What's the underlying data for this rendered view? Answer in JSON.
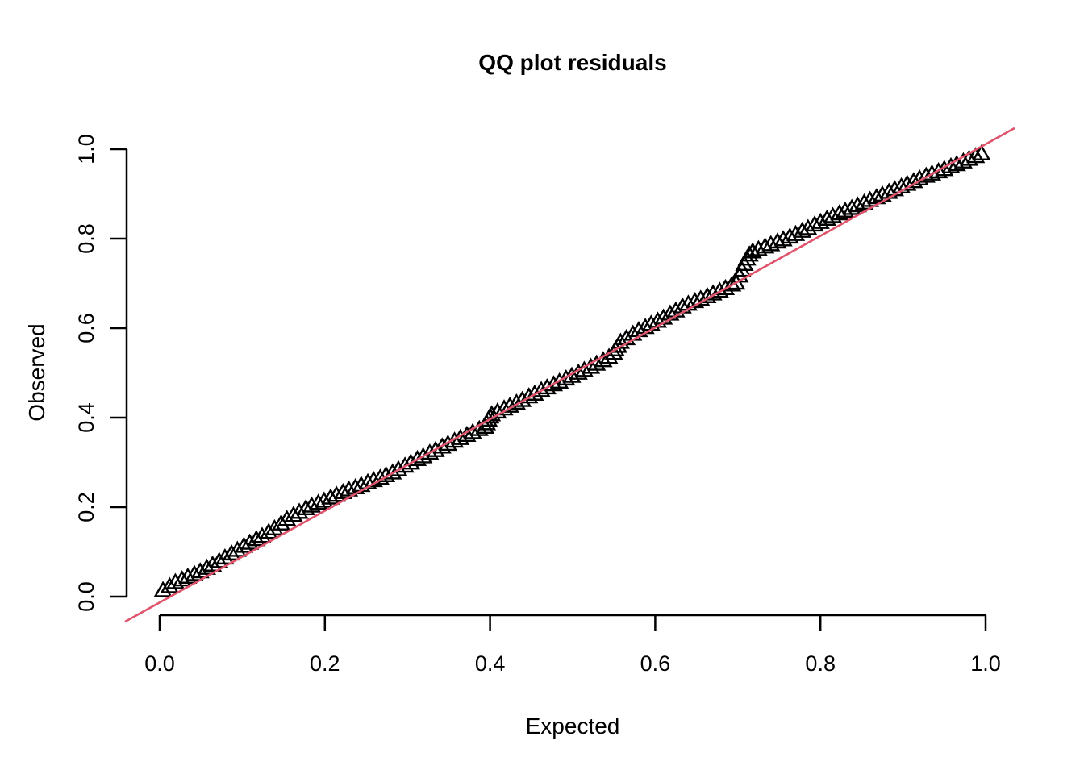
{
  "figure": {
    "background": "#ffffff",
    "foreground": "#000000"
  },
  "chart_data": {
    "type": "scatter",
    "title": "QQ plot residuals",
    "xlabel": "Expected",
    "ylabel": "Observed",
    "xlim": [
      0,
      1
    ],
    "ylim": [
      0,
      1
    ],
    "grid": false,
    "legend": "none",
    "x_ticks": [
      0.0,
      0.2,
      0.4,
      0.6,
      0.8,
      1.0
    ],
    "x_tick_labels": [
      "0.0",
      "0.2",
      "0.4",
      "0.6",
      "0.8",
      "1.0"
    ],
    "y_ticks": [
      0.0,
      0.2,
      0.4,
      0.6,
      0.8,
      1.0
    ],
    "y_tick_labels": [
      "0.0",
      "0.2",
      "0.4",
      "0.6",
      "0.8",
      "1.0"
    ],
    "marker": {
      "shape": "triangle-up-open",
      "color": "#000000"
    },
    "ref_line": {
      "slope": 1.024,
      "intercept": -0.013,
      "color": "#DF536B"
    },
    "series": [
      {
        "name": "residual quantiles",
        "points": [
          [
            0.004,
            0.011
          ],
          [
            0.012,
            0.02
          ],
          [
            0.019,
            0.029
          ],
          [
            0.027,
            0.035
          ],
          [
            0.034,
            0.041
          ],
          [
            0.042,
            0.047
          ],
          [
            0.049,
            0.053
          ],
          [
            0.057,
            0.061
          ],
          [
            0.064,
            0.068
          ],
          [
            0.072,
            0.076
          ],
          [
            0.079,
            0.084
          ],
          [
            0.087,
            0.093
          ],
          [
            0.094,
            0.101
          ],
          [
            0.102,
            0.11
          ],
          [
            0.109,
            0.117
          ],
          [
            0.117,
            0.125
          ],
          [
            0.124,
            0.132
          ],
          [
            0.132,
            0.141
          ],
          [
            0.139,
            0.149
          ],
          [
            0.147,
            0.16
          ],
          [
            0.154,
            0.17
          ],
          [
            0.162,
            0.179
          ],
          [
            0.169,
            0.186
          ],
          [
            0.177,
            0.194
          ],
          [
            0.184,
            0.2
          ],
          [
            0.192,
            0.206
          ],
          [
            0.199,
            0.211
          ],
          [
            0.207,
            0.218
          ],
          [
            0.214,
            0.224
          ],
          [
            0.222,
            0.23
          ],
          [
            0.229,
            0.236
          ],
          [
            0.237,
            0.241
          ],
          [
            0.244,
            0.246
          ],
          [
            0.252,
            0.252
          ],
          [
            0.259,
            0.257
          ],
          [
            0.267,
            0.262
          ],
          [
            0.274,
            0.268
          ],
          [
            0.282,
            0.274
          ],
          [
            0.289,
            0.281
          ],
          [
            0.297,
            0.289
          ],
          [
            0.304,
            0.296
          ],
          [
            0.312,
            0.304
          ],
          [
            0.319,
            0.31
          ],
          [
            0.327,
            0.318
          ],
          [
            0.334,
            0.324
          ],
          [
            0.342,
            0.332
          ],
          [
            0.349,
            0.338
          ],
          [
            0.357,
            0.345
          ],
          [
            0.364,
            0.351
          ],
          [
            0.372,
            0.358
          ],
          [
            0.379,
            0.364
          ],
          [
            0.387,
            0.371
          ],
          [
            0.394,
            0.376
          ],
          [
            0.396,
            0.384
          ],
          [
            0.398,
            0.392
          ],
          [
            0.4,
            0.399
          ],
          [
            0.402,
            0.404
          ],
          [
            0.409,
            0.41
          ],
          [
            0.417,
            0.417
          ],
          [
            0.424,
            0.423
          ],
          [
            0.432,
            0.43
          ],
          [
            0.439,
            0.436
          ],
          [
            0.447,
            0.444
          ],
          [
            0.454,
            0.45
          ],
          [
            0.462,
            0.458
          ],
          [
            0.469,
            0.464
          ],
          [
            0.477,
            0.471
          ],
          [
            0.484,
            0.477
          ],
          [
            0.492,
            0.484
          ],
          [
            0.499,
            0.49
          ],
          [
            0.507,
            0.497
          ],
          [
            0.514,
            0.503
          ],
          [
            0.522,
            0.51
          ],
          [
            0.529,
            0.517
          ],
          [
            0.537,
            0.525
          ],
          [
            0.544,
            0.532
          ],
          [
            0.55,
            0.541
          ],
          [
            0.552,
            0.549
          ],
          [
            0.555,
            0.557
          ],
          [
            0.558,
            0.566
          ],
          [
            0.565,
            0.574
          ],
          [
            0.573,
            0.584
          ],
          [
            0.58,
            0.592
          ],
          [
            0.588,
            0.599
          ],
          [
            0.595,
            0.606
          ],
          [
            0.603,
            0.613
          ],
          [
            0.61,
            0.62
          ],
          [
            0.618,
            0.629
          ],
          [
            0.625,
            0.636
          ],
          [
            0.633,
            0.645
          ],
          [
            0.64,
            0.651
          ],
          [
            0.648,
            0.657
          ],
          [
            0.655,
            0.662
          ],
          [
            0.663,
            0.668
          ],
          [
            0.67,
            0.674
          ],
          [
            0.678,
            0.68
          ],
          [
            0.685,
            0.686
          ],
          [
            0.693,
            0.694
          ],
          [
            0.698,
            0.698
          ],
          [
            0.702,
            0.714
          ],
          [
            0.705,
            0.727
          ],
          [
            0.708,
            0.74
          ],
          [
            0.711,
            0.752
          ],
          [
            0.714,
            0.761
          ],
          [
            0.718,
            0.768
          ],
          [
            0.725,
            0.773
          ],
          [
            0.733,
            0.779
          ],
          [
            0.74,
            0.784
          ],
          [
            0.748,
            0.79
          ],
          [
            0.755,
            0.795
          ],
          [
            0.763,
            0.801
          ],
          [
            0.77,
            0.807
          ],
          [
            0.778,
            0.814
          ],
          [
            0.785,
            0.82
          ],
          [
            0.793,
            0.828
          ],
          [
            0.8,
            0.834
          ],
          [
            0.808,
            0.841
          ],
          [
            0.815,
            0.847
          ],
          [
            0.823,
            0.853
          ],
          [
            0.83,
            0.859
          ],
          [
            0.838,
            0.865
          ],
          [
            0.845,
            0.871
          ],
          [
            0.853,
            0.877
          ],
          [
            0.86,
            0.883
          ],
          [
            0.868,
            0.889
          ],
          [
            0.875,
            0.895
          ],
          [
            0.883,
            0.901
          ],
          [
            0.89,
            0.907
          ],
          [
            0.898,
            0.913
          ],
          [
            0.905,
            0.919
          ],
          [
            0.913,
            0.925
          ],
          [
            0.92,
            0.931
          ],
          [
            0.928,
            0.937
          ],
          [
            0.935,
            0.942
          ],
          [
            0.943,
            0.947
          ],
          [
            0.95,
            0.952
          ],
          [
            0.958,
            0.958
          ],
          [
            0.965,
            0.963
          ],
          [
            0.973,
            0.969
          ],
          [
            0.98,
            0.975
          ],
          [
            0.988,
            0.981
          ],
          [
            0.995,
            0.987
          ]
        ]
      }
    ]
  }
}
